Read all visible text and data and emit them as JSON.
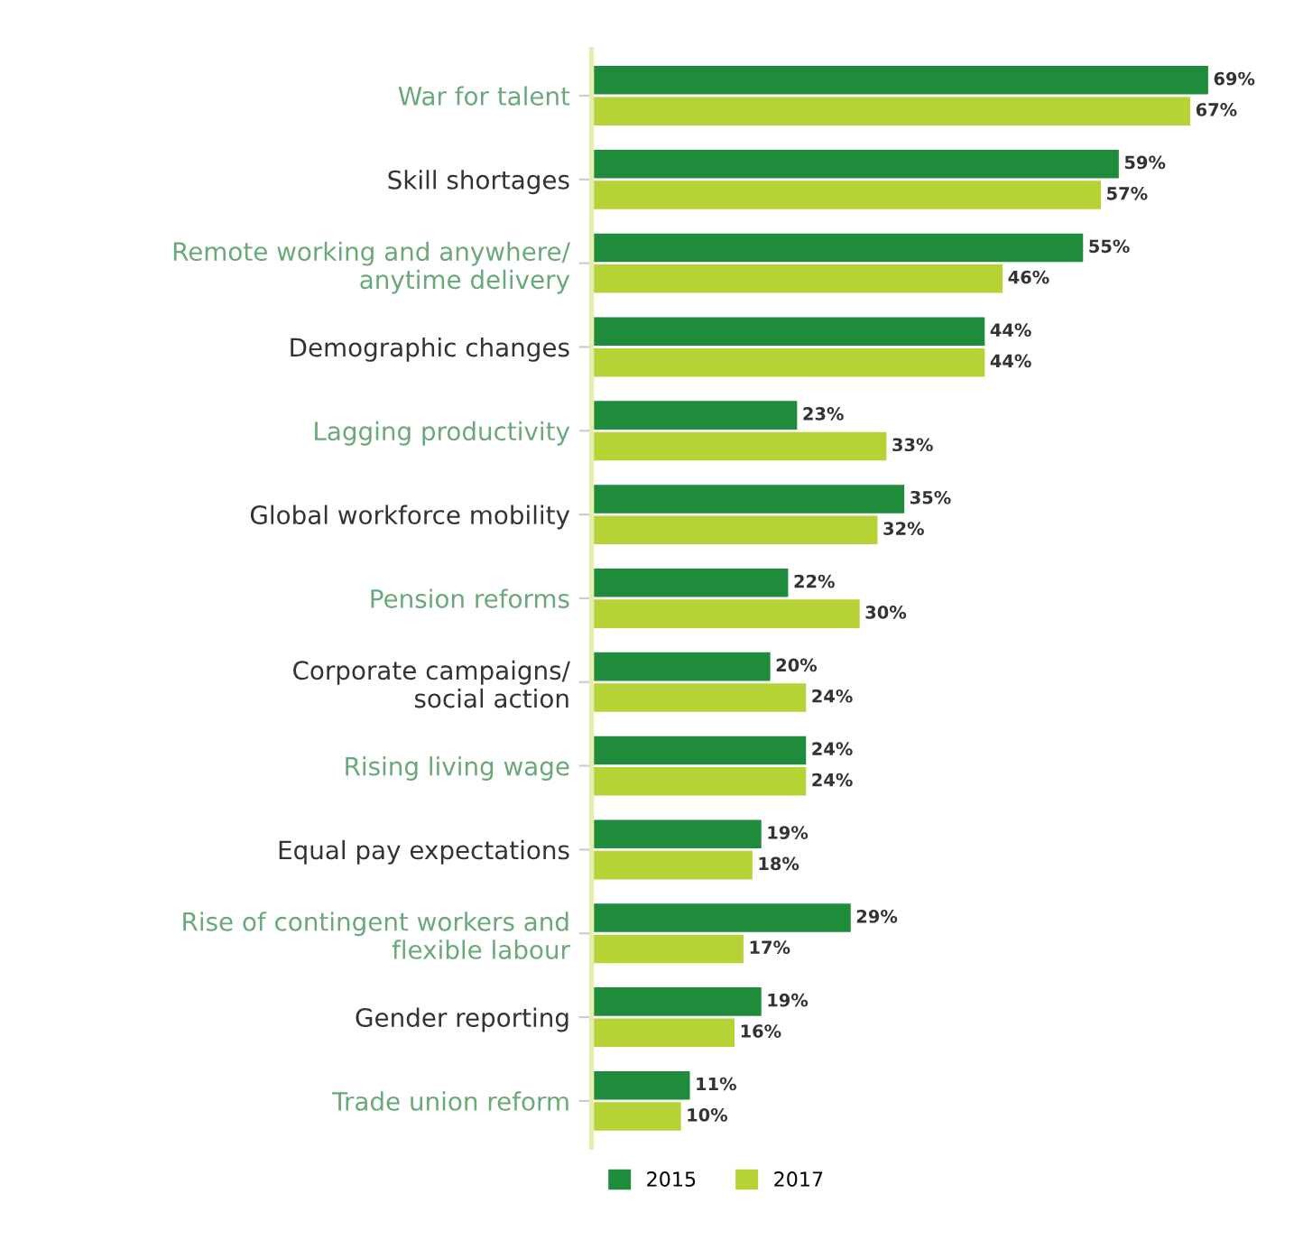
{
  "chart_data": {
    "type": "bar",
    "orientation": "horizontal",
    "categories": [
      "War for talent",
      "Skill shortages",
      "Remote working and anywhere/\nanytime delivery",
      "Demographic changes",
      "Lagging productivity",
      "Global workforce mobility",
      "Pension reforms",
      "Corporate campaigns/\nsocial action",
      "Rising living wage",
      "Equal pay expectations",
      "Rise of contingent workers and\nflexible labour",
      "Gender reporting",
      "Trade union reform"
    ],
    "series": [
      {
        "name": "2015",
        "color": "#1e8c3a",
        "values": [
          69,
          59,
          55,
          44,
          23,
          35,
          22,
          20,
          24,
          19,
          29,
          19,
          11
        ],
        "value_labels": [
          "69%",
          "59%",
          "55%",
          "44%",
          "23%",
          "35%",
          "22%",
          "20%",
          "24%",
          "19%",
          "29%",
          "19%",
          "11%"
        ]
      },
      {
        "name": "2017",
        "color": "#b5d334",
        "values": [
          67,
          57,
          46,
          44,
          33,
          32,
          30,
          24,
          24,
          18,
          17,
          16,
          10
        ],
        "value_labels": [
          "67%",
          "57%",
          "46%",
          "44%",
          "33%",
          "32%",
          "30%",
          "24%",
          "24%",
          "18%",
          "17%",
          "16%",
          "10%"
        ]
      }
    ],
    "tick_labels": "y",
    "legend": "bottom left",
    "grid": false
  }
}
